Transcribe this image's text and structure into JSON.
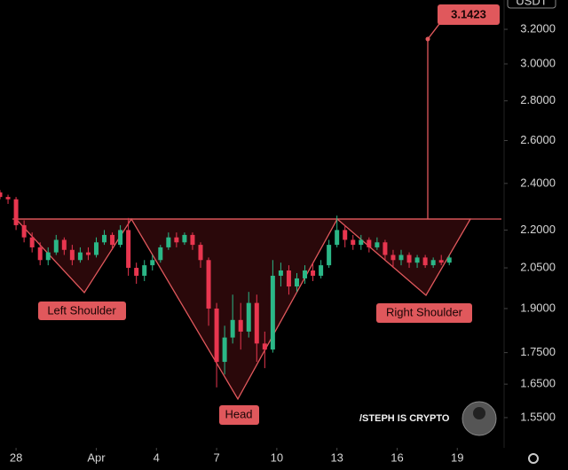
{
  "currency": "USDT",
  "chart_data": {
    "type": "candlestick",
    "log_scale": true,
    "x": [
      -0.8,
      -0.4,
      0,
      0.4,
      0.8,
      1.2,
      1.6,
      2,
      2.4,
      2.8,
      3.2,
      3.6,
      4,
      4.4,
      4.8,
      5.2,
      5.6,
      6,
      6.4,
      6.8,
      7.2,
      7.6,
      8,
      8.4,
      8.8,
      9.2,
      9.6,
      10,
      10.4,
      10.8,
      11.2,
      11.6,
      12,
      12.4,
      12.8,
      13.2,
      13.6,
      14,
      14.4,
      14.8,
      15.2,
      15.6,
      16,
      16.4,
      16.8,
      17.2,
      17.6,
      18,
      18.4,
      18.8,
      19.2,
      19.6,
      20,
      20.4,
      20.8,
      21.2,
      21.6
    ],
    "open": [
      2.36,
      2.34,
      2.33,
      2.22,
      2.17,
      2.13,
      2.08,
      2.11,
      2.16,
      2.12,
      2.08,
      2.11,
      2.1,
      2.15,
      2.18,
      2.14,
      2.2,
      2.05,
      2.02,
      2.06,
      2.08,
      2.13,
      2.17,
      2.15,
      2.18,
      2.14,
      2.08,
      1.9,
      1.72,
      1.8,
      1.86,
      1.82,
      1.92,
      1.78,
      1.76,
      2.02,
      2.04,
      1.98,
      2.01,
      2.04,
      2.02,
      2.06,
      2.14,
      2.2,
      2.16,
      2.14,
      2.16,
      2.13,
      2.15,
      2.1,
      2.08,
      2.1,
      2.07,
      2.09,
      2.06,
      2.08,
      2.07
    ],
    "high": [
      2.37,
      2.35,
      2.34,
      2.24,
      2.19,
      2.15,
      2.13,
      2.18,
      2.17,
      2.14,
      2.13,
      2.13,
      2.17,
      2.2,
      2.19,
      2.22,
      2.25,
      2.07,
      2.08,
      2.1,
      2.14,
      2.19,
      2.19,
      2.19,
      2.19,
      2.15,
      2.09,
      1.92,
      1.84,
      1.95,
      1.92,
      1.96,
      1.95,
      1.82,
      2.08,
      2.07,
      2.06,
      2.03,
      2.06,
      2.07,
      2.08,
      2.16,
      2.26,
      2.22,
      2.18,
      2.18,
      2.17,
      2.17,
      2.16,
      2.12,
      2.12,
      2.11,
      2.1,
      2.1,
      2.09,
      2.1,
      2.1
    ],
    "low": [
      2.33,
      2.31,
      2.2,
      2.15,
      2.11,
      2.06,
      2.06,
      2.1,
      2.1,
      2.06,
      2.07,
      2.08,
      2.09,
      2.14,
      2.12,
      2.13,
      2.02,
      1.99,
      2.0,
      2.04,
      2.07,
      2.12,
      2.13,
      2.14,
      2.12,
      2.05,
      1.84,
      1.64,
      1.68,
      1.78,
      1.76,
      1.8,
      1.72,
      1.7,
      1.75,
      1.98,
      1.95,
      1.96,
      1.99,
      2.0,
      2.01,
      2.05,
      2.13,
      2.13,
      2.12,
      2.12,
      2.11,
      2.12,
      2.08,
      2.05,
      2.06,
      2.05,
      2.05,
      2.05,
      2.05,
      2.06,
      2.06
    ],
    "close": [
      2.34,
      2.33,
      2.22,
      2.17,
      2.13,
      2.08,
      2.11,
      2.16,
      2.12,
      2.08,
      2.11,
      2.1,
      2.15,
      2.18,
      2.14,
      2.2,
      2.05,
      2.02,
      2.06,
      2.08,
      2.13,
      2.17,
      2.15,
      2.18,
      2.14,
      2.08,
      1.9,
      1.72,
      1.8,
      1.86,
      1.82,
      1.92,
      1.78,
      1.76,
      2.02,
      2.04,
      1.98,
      2.01,
      2.04,
      2.02,
      2.06,
      2.14,
      2.2,
      2.16,
      2.14,
      2.16,
      2.13,
      2.15,
      2.1,
      2.08,
      2.1,
      2.07,
      2.09,
      2.06,
      2.08,
      2.07,
      2.09
    ],
    "up_color": "#2bb787",
    "down_color": "#e8364f",
    "xlim": [
      -0.8,
      24.2
    ],
    "xticks": [
      {
        "value": 0,
        "label": "28"
      },
      {
        "value": 4,
        "label": "Apr"
      },
      {
        "value": 7,
        "label": "4"
      },
      {
        "value": 10,
        "label": "7"
      },
      {
        "value": 13,
        "label": "10"
      },
      {
        "value": 16,
        "label": "13"
      },
      {
        "value": 19,
        "label": "16"
      },
      {
        "value": 22,
        "label": "19"
      }
    ],
    "ylim": [
      1.465,
      3.38
    ],
    "yticks": [
      {
        "value": 3.2,
        "label": "3.2000"
      },
      {
        "value": 3.0,
        "label": "3.0000"
      },
      {
        "value": 2.8,
        "label": "2.8000"
      },
      {
        "value": 2.6,
        "label": "2.6000"
      },
      {
        "value": 2.4,
        "label": "2.4000"
      },
      {
        "value": 2.2,
        "label": "2.2000"
      },
      {
        "value": 2.05,
        "label": "2.0500"
      },
      {
        "value": 1.9,
        "label": "1.9000"
      },
      {
        "value": 1.75,
        "label": "1.7500"
      },
      {
        "value": 1.65,
        "label": "1.6500"
      },
      {
        "value": 1.55,
        "label": "1.5500"
      }
    ],
    "target": 3.1423,
    "annotations": [
      "Left Shoulder",
      "Head",
      "Right Shoulder"
    ],
    "watermark": "/STEPH IS CRYPTO"
  }
}
